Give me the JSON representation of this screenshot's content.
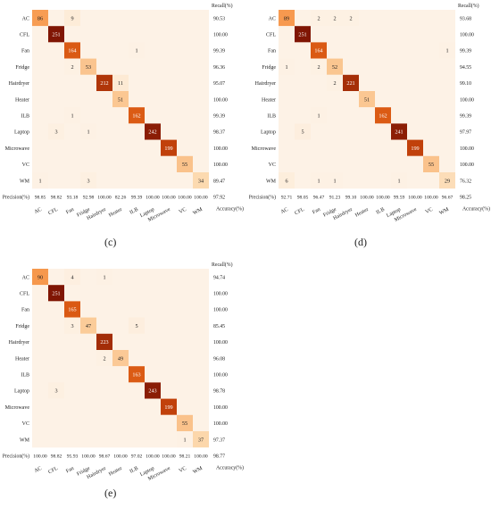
{
  "chart_data": [
    {
      "type": "heatmap",
      "panel_label": "(c)",
      "recall_header": "Recall(%)",
      "precision_header": "Precision(%)",
      "accuracy_header": "Accuracy(%)",
      "classes": [
        "AC",
        "CFL",
        "Fan",
        "Fridge",
        "Hairdryer",
        "Heater",
        "ILB",
        "Laptop",
        "Microwave",
        "VC",
        "WM"
      ],
      "matrix": [
        [
          86,
          0,
          9,
          0,
          0,
          0,
          0,
          0,
          0,
          0,
          0
        ],
        [
          0,
          251,
          0,
          0,
          0,
          0,
          0,
          0,
          0,
          0,
          0
        ],
        [
          0,
          0,
          164,
          0,
          0,
          0,
          1,
          0,
          0,
          0,
          0
        ],
        [
          0,
          0,
          2,
          53,
          0,
          0,
          0,
          0,
          0,
          0,
          0
        ],
        [
          0,
          0,
          0,
          0,
          212,
          11,
          0,
          0,
          0,
          0,
          0
        ],
        [
          0,
          0,
          0,
          0,
          0,
          51,
          0,
          0,
          0,
          0,
          0
        ],
        [
          0,
          0,
          1,
          0,
          0,
          0,
          162,
          0,
          0,
          0,
          0
        ],
        [
          0,
          3,
          0,
          1,
          0,
          0,
          0,
          242,
          0,
          0,
          0
        ],
        [
          0,
          0,
          0,
          0,
          0,
          0,
          0,
          0,
          199,
          0,
          0
        ],
        [
          0,
          0,
          0,
          0,
          0,
          0,
          0,
          0,
          0,
          55,
          0
        ],
        [
          1,
          0,
          0,
          3,
          0,
          0,
          0,
          0,
          0,
          0,
          34
        ]
      ],
      "recall": [
        "90.53",
        "100.00",
        "99.39",
        "96.36",
        "95.07",
        "100.00",
        "99.39",
        "98.37",
        "100.00",
        "100.00",
        "89.47"
      ],
      "precision": [
        "98.85",
        "98.82",
        "93.18",
        "92.98",
        "100.00",
        "82.26",
        "99.39",
        "100.00",
        "100.00",
        "100.00",
        "100.00"
      ],
      "accuracy": "97.92"
    },
    {
      "type": "heatmap",
      "panel_label": "(d)",
      "recall_header": "Recall(%)",
      "precision_header": "Precision(%)",
      "accuracy_header": "Accuracy(%)",
      "classes": [
        "AC",
        "CFL",
        "Fan",
        "Fridge",
        "Hairdryer",
        "Heater",
        "ILB",
        "Laptop",
        "Microwave",
        "VC",
        "WM"
      ],
      "matrix": [
        [
          89,
          0,
          2,
          2,
          2,
          0,
          0,
          0,
          0,
          0,
          0
        ],
        [
          0,
          251,
          0,
          0,
          0,
          0,
          0,
          0,
          0,
          0,
          0
        ],
        [
          0,
          0,
          164,
          0,
          0,
          0,
          0,
          0,
          0,
          0,
          1
        ],
        [
          1,
          0,
          2,
          52,
          0,
          0,
          0,
          0,
          0,
          0,
          0
        ],
        [
          0,
          0,
          0,
          2,
          221,
          0,
          0,
          0,
          0,
          0,
          0
        ],
        [
          0,
          0,
          0,
          0,
          0,
          51,
          0,
          0,
          0,
          0,
          0
        ],
        [
          0,
          0,
          1,
          0,
          0,
          0,
          162,
          0,
          0,
          0,
          0
        ],
        [
          0,
          5,
          0,
          0,
          0,
          0,
          0,
          241,
          0,
          0,
          0
        ],
        [
          0,
          0,
          0,
          0,
          0,
          0,
          0,
          0,
          199,
          0,
          0
        ],
        [
          0,
          0,
          0,
          0,
          0,
          0,
          0,
          0,
          0,
          55,
          0
        ],
        [
          6,
          0,
          1,
          1,
          0,
          0,
          0,
          1,
          0,
          0,
          29
        ]
      ],
      "recall": [
        "93.68",
        "100.00",
        "99.39",
        "94.55",
        "99.10",
        "100.00",
        "99.39",
        "97.97",
        "100.00",
        "100.00",
        "76.32"
      ],
      "precision": [
        "92.71",
        "98.05",
        "96.47",
        "91.23",
        "99.10",
        "100.00",
        "100.00",
        "99.59",
        "100.00",
        "100.00",
        "96.67"
      ],
      "accuracy": "98.25"
    },
    {
      "type": "heatmap",
      "panel_label": "(e)",
      "recall_header": "Recall(%)",
      "precision_header": "Precision(%)",
      "accuracy_header": "Accuracy(%)",
      "classes": [
        "AC",
        "CFL",
        "Fan",
        "Fridge",
        "Hairdryer",
        "Heater",
        "ILB",
        "Laptop",
        "Microwave",
        "VC",
        "WM"
      ],
      "matrix": [
        [
          90,
          0,
          4,
          0,
          1,
          0,
          0,
          0,
          0,
          0,
          0
        ],
        [
          0,
          251,
          0,
          0,
          0,
          0,
          0,
          0,
          0,
          0,
          0
        ],
        [
          0,
          0,
          165,
          0,
          0,
          0,
          0,
          0,
          0,
          0,
          0
        ],
        [
          0,
          0,
          3,
          47,
          0,
          0,
          5,
          0,
          0,
          0,
          0
        ],
        [
          0,
          0,
          0,
          0,
          223,
          0,
          0,
          0,
          0,
          0,
          0
        ],
        [
          0,
          0,
          0,
          0,
          2,
          49,
          0,
          0,
          0,
          0,
          0
        ],
        [
          0,
          0,
          0,
          0,
          0,
          0,
          163,
          0,
          0,
          0,
          0
        ],
        [
          0,
          3,
          0,
          0,
          0,
          0,
          0,
          243,
          0,
          0,
          0
        ],
        [
          0,
          0,
          0,
          0,
          0,
          0,
          0,
          0,
          199,
          0,
          0
        ],
        [
          0,
          0,
          0,
          0,
          0,
          0,
          0,
          0,
          0,
          55,
          0
        ],
        [
          0,
          0,
          0,
          0,
          0,
          0,
          0,
          0,
          0,
          1,
          37
        ]
      ],
      "recall": [
        "94.74",
        "100.00",
        "100.00",
        "85.45",
        "100.00",
        "96.08",
        "100.00",
        "98.78",
        "100.00",
        "100.00",
        "97.37"
      ],
      "precision": [
        "100.00",
        "98.82",
        "95.93",
        "100.00",
        "98.67",
        "100.00",
        "97.02",
        "100.00",
        "100.00",
        "98.21",
        "100.00"
      ],
      "accuracy": "98.77"
    }
  ]
}
